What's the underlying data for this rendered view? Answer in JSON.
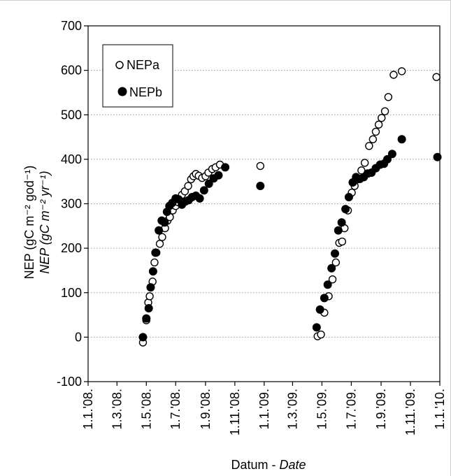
{
  "chart_data": {
    "type": "scatter",
    "xlabel": "Datum - ",
    "xlabel_italic": "Date",
    "ylabel_line1": "NEP (gC m⁻² god⁻¹)",
    "ylabel_line2": "NEP (gC m⁻² yr⁻¹)",
    "x_tick_labels": [
      "1.1.'08.",
      "1.3.'08.",
      "1.5.'08.",
      "1.7.'08.",
      "1.9.'08.",
      "1.11.'08.",
      "1.1.'09.",
      "1.3.'09.",
      "1.5.'09.",
      "1.7.'09.",
      "1.9.'09.",
      "1.11.'09.",
      "1.1.'10."
    ],
    "y_ticks": [
      -100,
      0,
      100,
      200,
      300,
      400,
      500,
      600,
      700
    ],
    "y_tick_labels": [
      "-100",
      "0",
      "100",
      "200",
      "300",
      "400",
      "500",
      "600",
      "700"
    ],
    "xlim": [
      "2008-01-01",
      "2010-01-01"
    ],
    "ylim": [
      -100,
      700
    ],
    "grid": "horizontal dotted",
    "legend_position": "top-left",
    "series": [
      {
        "name": "NEPa",
        "marker": "open-circle",
        "color": "#000000",
        "points": [
          [
            "2008-04-24",
            -12
          ],
          [
            "2008-05-01",
            38
          ],
          [
            "2008-05-05",
            78
          ],
          [
            "2008-05-08",
            92
          ],
          [
            "2008-05-14",
            125
          ],
          [
            "2008-05-18",
            168
          ],
          [
            "2008-05-22",
            190
          ],
          [
            "2008-05-29",
            210
          ],
          [
            "2008-06-03",
            225
          ],
          [
            "2008-06-09",
            245
          ],
          [
            "2008-06-14",
            262
          ],
          [
            "2008-06-19",
            270
          ],
          [
            "2008-06-25",
            285
          ],
          [
            "2008-07-01",
            295
          ],
          [
            "2008-07-07",
            303
          ],
          [
            "2008-07-14",
            320
          ],
          [
            "2008-07-20",
            328
          ],
          [
            "2008-07-27",
            340
          ],
          [
            "2008-08-02",
            355
          ],
          [
            "2008-08-07",
            362
          ],
          [
            "2008-08-12",
            367
          ],
          [
            "2008-08-18",
            363
          ],
          [
            "2008-08-25",
            358
          ],
          [
            "2008-09-01",
            362
          ],
          [
            "2008-09-07",
            370
          ],
          [
            "2008-09-15",
            378
          ],
          [
            "2008-09-22",
            382
          ],
          [
            "2008-10-01",
            388
          ],
          [
            "2008-12-24",
            385
          ],
          [
            "2009-04-22",
            2
          ],
          [
            "2009-04-29",
            6
          ],
          [
            "2009-05-06",
            55
          ],
          [
            "2009-05-15",
            92
          ],
          [
            "2009-05-23",
            130
          ],
          [
            "2009-05-30",
            168
          ],
          [
            "2009-06-06",
            212
          ],
          [
            "2009-06-12",
            215
          ],
          [
            "2009-06-17",
            245
          ],
          [
            "2009-06-24",
            285
          ],
          [
            "2009-07-02",
            325
          ],
          [
            "2009-07-08",
            340
          ],
          [
            "2009-07-15",
            355
          ],
          [
            "2009-07-22",
            375
          ],
          [
            "2009-07-29",
            392
          ],
          [
            "2009-08-07",
            430
          ],
          [
            "2009-08-15",
            445
          ],
          [
            "2009-08-21",
            462
          ],
          [
            "2009-08-27",
            478
          ],
          [
            "2009-09-02",
            493
          ],
          [
            "2009-09-09",
            508
          ],
          [
            "2009-09-16",
            540
          ],
          [
            "2009-09-27",
            590
          ],
          [
            "2009-10-14",
            598
          ],
          [
            "2009-12-25",
            585
          ]
        ]
      },
      {
        "name": "NEPb",
        "marker": "filled-circle",
        "color": "#000000",
        "points": [
          [
            "2008-04-24",
            0
          ],
          [
            "2008-05-01",
            42
          ],
          [
            "2008-05-06",
            65
          ],
          [
            "2008-05-10",
            112
          ],
          [
            "2008-05-15",
            148
          ],
          [
            "2008-05-20",
            190
          ],
          [
            "2008-05-27",
            240
          ],
          [
            "2008-06-02",
            262
          ],
          [
            "2008-06-08",
            258
          ],
          [
            "2008-06-13",
            282
          ],
          [
            "2008-06-18",
            295
          ],
          [
            "2008-06-24",
            302
          ],
          [
            "2008-07-01",
            312
          ],
          [
            "2008-07-07",
            310
          ],
          [
            "2008-07-14",
            298
          ],
          [
            "2008-07-21",
            305
          ],
          [
            "2008-07-28",
            308
          ],
          [
            "2008-08-04",
            315
          ],
          [
            "2008-08-12",
            318
          ],
          [
            "2008-08-20",
            312
          ],
          [
            "2008-08-29",
            330
          ],
          [
            "2008-09-08",
            345
          ],
          [
            "2008-09-18",
            357
          ],
          [
            "2008-09-28",
            364
          ],
          [
            "2008-10-12",
            382
          ],
          [
            "2008-12-24",
            340
          ],
          [
            "2009-04-20",
            22
          ],
          [
            "2009-04-27",
            62
          ],
          [
            "2009-05-06",
            88
          ],
          [
            "2009-05-13",
            118
          ],
          [
            "2009-05-21",
            155
          ],
          [
            "2009-05-28",
            188
          ],
          [
            "2009-06-04",
            240
          ],
          [
            "2009-06-11",
            258
          ],
          [
            "2009-06-19",
            288
          ],
          [
            "2009-06-26",
            315
          ],
          [
            "2009-07-04",
            348
          ],
          [
            "2009-07-11",
            360
          ],
          [
            "2009-07-19",
            356
          ],
          [
            "2009-07-27",
            360
          ],
          [
            "2009-08-04",
            368
          ],
          [
            "2009-08-12",
            370
          ],
          [
            "2009-08-21",
            380
          ],
          [
            "2009-08-30",
            388
          ],
          [
            "2009-09-07",
            390
          ],
          [
            "2009-09-14",
            400
          ],
          [
            "2009-09-24",
            412
          ],
          [
            "2009-10-14",
            445
          ],
          [
            "2009-12-27",
            405
          ]
        ]
      }
    ]
  }
}
